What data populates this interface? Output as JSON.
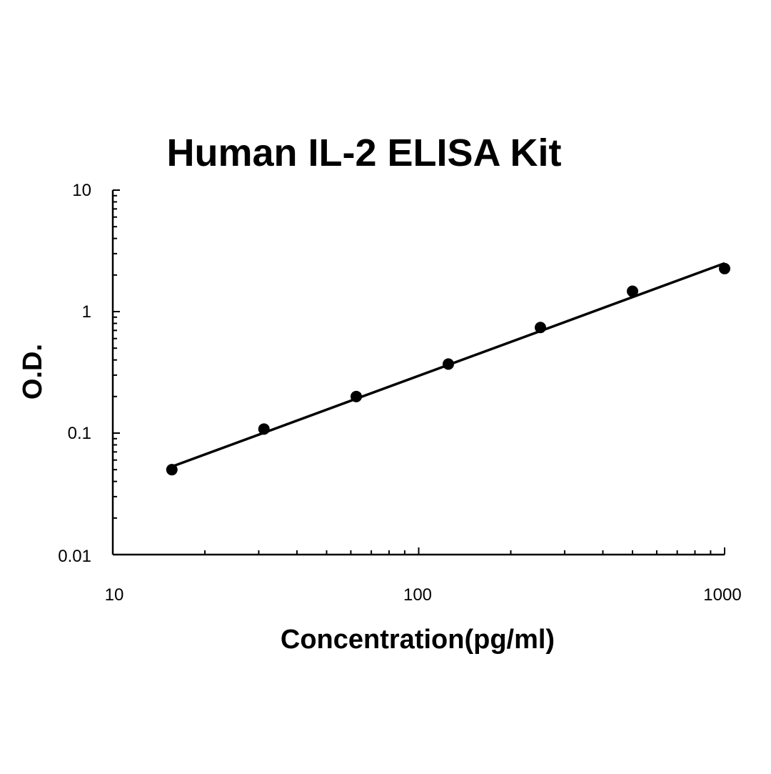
{
  "chart_data": {
    "type": "scatter",
    "title": "Human IL-2 ELISA Kit",
    "xlabel": "Concentration(pg/ml)",
    "ylabel": "O.D.",
    "x_scale": "log",
    "y_scale": "log",
    "xlim": [
      10,
      1000
    ],
    "ylim": [
      0.01,
      10
    ],
    "x_ticks": [
      "10",
      "100",
      "1000"
    ],
    "y_ticks": [
      "10",
      "1",
      "0.1",
      "0.01"
    ],
    "grid": false,
    "legend": "none",
    "series": [
      {
        "x": [
          15.6,
          31.2,
          62.5,
          125,
          250,
          500,
          1000
        ],
        "y": [
          0.05,
          0.108,
          0.2,
          0.37,
          0.74,
          1.47,
          2.26
        ]
      }
    ],
    "fit_line": {
      "type": "power",
      "x": [
        15.6,
        1000
      ],
      "y": [
        0.053,
        2.5
      ]
    },
    "colors": {
      "marker": "#000000",
      "line": "#000000",
      "axis": "#000000"
    }
  }
}
